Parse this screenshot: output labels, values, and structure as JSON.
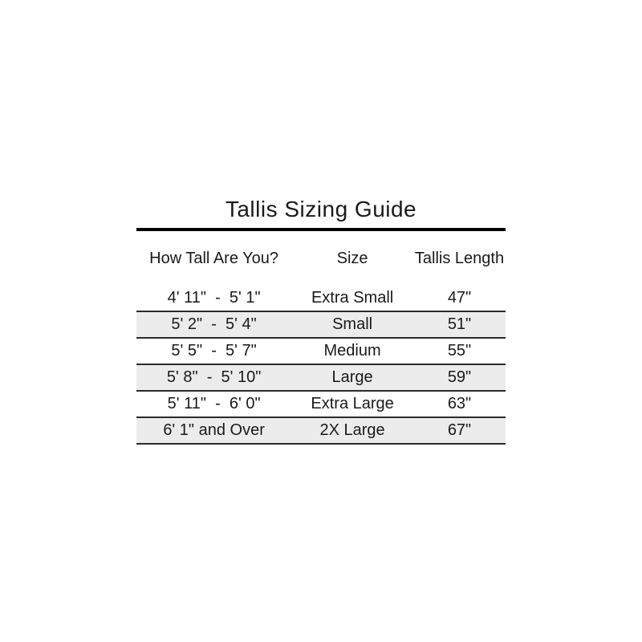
{
  "title": "Tallis Sizing Guide",
  "colors": {
    "shaded_row_bg": "#ececec",
    "row_border": "#2b2b2b",
    "title_rule": "#000000",
    "text": "#1a1a1a",
    "page_bg": "#ffffff"
  },
  "table": {
    "headers": [
      "How Tall Are You?",
      "Size",
      "Tallis Length"
    ],
    "rows": [
      {
        "height_range": "4' 11\"  -  5' 1\"",
        "size": "Extra Small",
        "tallis_length": "47\""
      },
      {
        "height_range": "5' 2\"  -  5' 4\"",
        "size": "Small",
        "tallis_length": "51\""
      },
      {
        "height_range": "5' 5\"  -  5' 7\"",
        "size": "Medium",
        "tallis_length": "55\""
      },
      {
        "height_range": "5' 8\"  -  5' 10\"",
        "size": "Large",
        "tallis_length": "59\""
      },
      {
        "height_range": "5' 11\"  -  6' 0\"",
        "size": "Extra Large",
        "tallis_length": "63\""
      },
      {
        "height_range": "6' 1\" and Over",
        "size": "2X Large",
        "tallis_length": "67\""
      }
    ]
  }
}
